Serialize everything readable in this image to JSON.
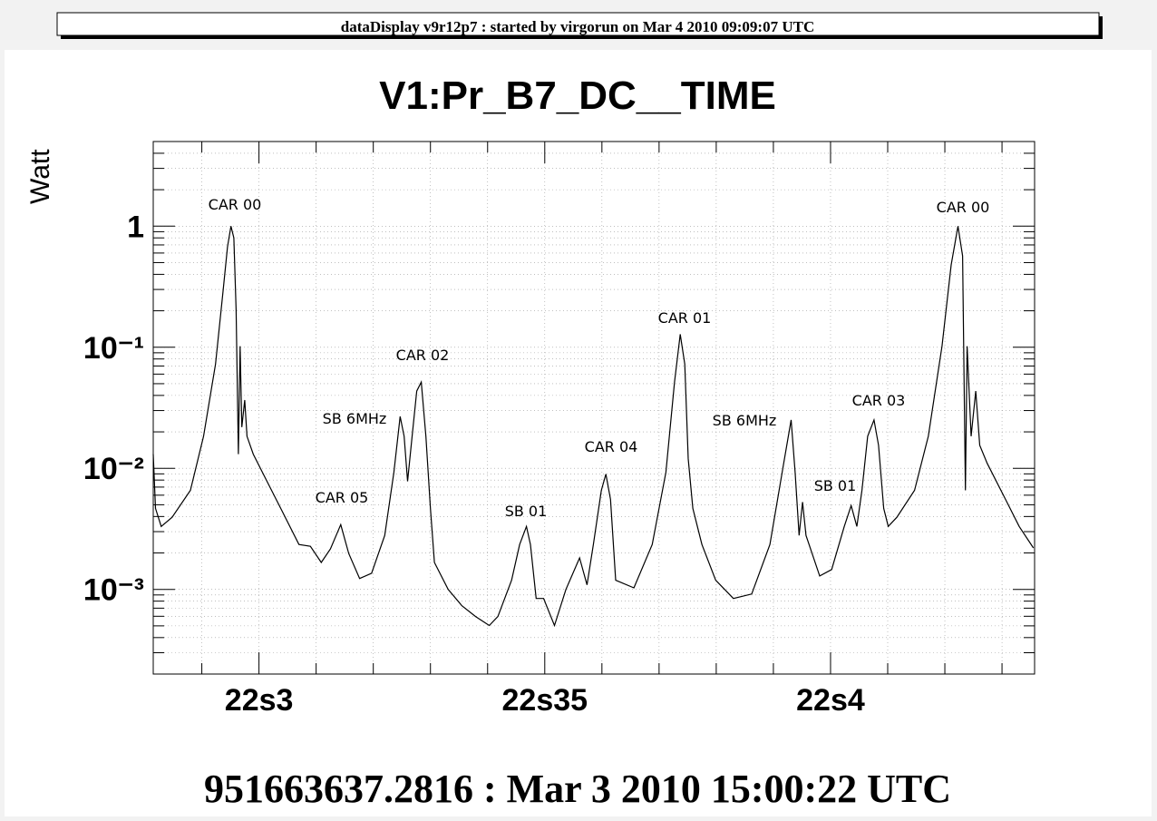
{
  "header": "dataDisplay v9r12p7 : started by virgorun on  Mar  4 2010 09:09:07 UTC",
  "chart_data": {
    "type": "line",
    "title": "V1:Pr_B7_DC__TIME",
    "y_label": "Watt",
    "x_label": "951663637.2816 : Mar  3 2010 15:00:22 UTC",
    "log_y": true,
    "grid": true,
    "color": "#000000",
    "xlim": [
      28.15,
      43.57
    ],
    "ylim": [
      0.0002,
      5
    ],
    "xticks": [
      {
        "value": 30,
        "label": "22s3"
      },
      {
        "value": 35,
        "label": "22s35"
      },
      {
        "value": 40,
        "label": "22s4"
      }
    ],
    "x_minor_ticks": [
      29,
      31,
      32,
      33,
      34,
      36,
      37,
      38,
      39,
      41,
      42,
      43
    ],
    "yticks": [
      {
        "value": 0.001,
        "label": "10⁻³"
      },
      {
        "value": 0.01,
        "label": "10⁻²"
      },
      {
        "value": 0.1,
        "label": "10⁻¹"
      },
      1
    ],
    "y_minor_ticks": [
      0.0002,
      0.0003,
      0.0004,
      0.0005,
      0.0006,
      0.0007,
      0.0008,
      0.0009,
      0.002,
      0.003,
      0.004,
      0.005,
      0.006,
      0.007,
      0.008,
      0.009,
      0.02,
      0.03,
      0.04,
      0.05,
      0.06,
      0.07,
      0.08,
      0.09,
      0.2,
      0.3,
      0.4,
      0.5,
      0.6,
      0.7,
      0.8,
      0.9,
      2,
      3,
      4,
      5
    ],
    "annotations": [
      "CAR 00",
      "CAR 05",
      "SB 6MHz",
      "CAR 02",
      "SB 01",
      "CAR 04",
      "CAR 01",
      "SB 6MHz",
      "SB 01",
      "CAR 03",
      "CAR 00"
    ],
    "x": [
      28.15,
      28.19,
      28.29,
      28.48,
      28.8,
      29.03,
      29.24,
      29.37,
      29.45,
      29.51,
      29.56,
      29.6,
      29.64,
      29.67,
      29.7,
      29.75,
      29.79,
      29.9,
      30.06,
      30.38,
      30.7,
      30.9,
      31.09,
      31.25,
      31.43,
      31.57,
      31.76,
      31.97,
      32.2,
      32.36,
      32.47,
      32.54,
      32.6,
      32.68,
      32.76,
      32.84,
      32.92,
      33.0,
      33.07,
      33.31,
      33.55,
      33.79,
      34.03,
      34.18,
      34.42,
      34.56,
      34.68,
      34.75,
      34.85,
      34.98,
      35.17,
      35.37,
      35.61,
      35.74,
      35.85,
      35.99,
      36.07,
      36.15,
      36.24,
      36.56,
      36.88,
      37.12,
      37.27,
      37.37,
      37.45,
      37.51,
      37.59,
      37.75,
      37.99,
      38.3,
      38.62,
      38.94,
      39.18,
      39.31,
      39.38,
      39.45,
      39.51,
      39.57,
      39.81,
      40.02,
      40.24,
      40.36,
      40.46,
      40.55,
      40.65,
      40.76,
      40.84,
      40.93,
      41.01,
      41.16,
      41.47,
      41.71,
      41.95,
      42.11,
      42.23,
      42.31,
      42.36,
      42.39,
      42.46,
      42.54,
      42.61,
      42.74,
      43.06,
      43.3,
      43.55
    ],
    "values": [
      0.0131,
      0.00467,
      0.00331,
      0.00394,
      0.00658,
      0.0184,
      0.0726,
      0.286,
      0.674,
      1.0,
      0.8,
      0.203,
      0.0131,
      0.102,
      0.0219,
      0.0366,
      0.0184,
      0.0131,
      0.00927,
      0.00467,
      0.00235,
      0.00227,
      0.00167,
      0.00216,
      0.00343,
      0.00198,
      0.00123,
      0.00136,
      0.00279,
      0.00927,
      0.0268,
      0.0184,
      0.00781,
      0.0184,
      0.0434,
      0.0515,
      0.0184,
      0.00467,
      0.00167,
      0.000998,
      0.000733,
      0.000597,
      0.000503,
      0.000597,
      0.00119,
      0.00235,
      0.00331,
      0.00235,
      0.000841,
      0.000841,
      0.000503,
      0.000998,
      0.00182,
      0.00109,
      0.00235,
      0.00658,
      0.00896,
      0.00555,
      0.00119,
      0.00103,
      0.00235,
      0.00927,
      0.0515,
      0.128,
      0.0726,
      0.012,
      0.00467,
      0.00235,
      0.00119,
      0.000841,
      0.000916,
      0.00235,
      0.011,
      0.0251,
      0.00927,
      0.00279,
      0.00527,
      0.00279,
      0.00129,
      0.00146,
      0.00331,
      0.00492,
      0.00331,
      0.00658,
      0.0184,
      0.0251,
      0.0155,
      0.00467,
      0.00331,
      0.00394,
      0.00658,
      0.0184,
      0.102,
      0.479,
      1.0,
      0.568,
      0.00658,
      0.102,
      0.0184,
      0.0434,
      0.0155,
      0.011,
      0.00555,
      0.00331,
      0.0022
    ]
  }
}
